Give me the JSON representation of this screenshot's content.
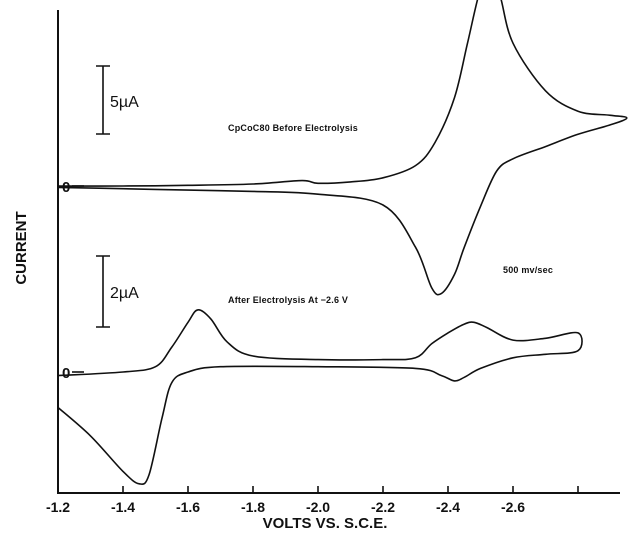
{
  "chart_data": {
    "type": "line",
    "title": "",
    "xlabel": "VOLTS  VS. S.C.E.",
    "ylabel": "CURRENT",
    "xlim": [
      -1.2,
      -3.0
    ],
    "x_ticks": [
      -1.2,
      -1.4,
      -1.6,
      -1.8,
      -2.0,
      -2.2,
      -2.4,
      -2.6,
      -2.8
    ],
    "x_tick_labels": [
      "-1.2",
      "-1.4",
      "-1.6",
      "-1.8",
      "-2.0",
      "-2.2",
      "-2.4",
      "-2.6",
      ""
    ],
    "annotations": {
      "top_panel": "CpCoC80 Before Electrolysis",
      "bottom_panel": "After Electrolysis At  −2.6 V",
      "scan_rate": "500 mv/sec"
    },
    "scale_bars": [
      {
        "label": "5µA",
        "panel": "top",
        "value_uA": 5
      },
      {
        "label": "2µA",
        "panel": "bottom",
        "value_uA": 2
      }
    ],
    "zero_labels": [
      "0",
      "0"
    ],
    "series": [
      {
        "panel": "top",
        "units": "µA",
        "x": [
          -1.2,
          -1.4,
          -1.6,
          -1.8,
          -1.95,
          -2.0,
          -2.1,
          -2.2,
          -2.3,
          -2.36,
          -2.42,
          -2.46,
          -2.5,
          -2.53,
          -2.56,
          -2.6,
          -2.7,
          -2.8,
          -2.9,
          -2.95,
          -2.9,
          -2.8,
          -2.7,
          -2.6,
          -2.55,
          -2.5,
          -2.45,
          -2.42,
          -2.38,
          -2.35,
          -2.3,
          -2.2,
          -2.0,
          -1.8,
          -1.6,
          -1.4,
          -1.2
        ],
        "y": [
          0.0,
          0.0,
          0.05,
          0.15,
          0.4,
          0.2,
          0.3,
          0.6,
          1.5,
          3.2,
          6.5,
          10.5,
          14.5,
          15.5,
          14.0,
          10.5,
          7.0,
          5.5,
          5.2,
          5.0,
          4.5,
          3.8,
          2.9,
          2.0,
          1.1,
          -1.5,
          -4.5,
          -6.5,
          -7.9,
          -7.5,
          -4.5,
          -1.4,
          -0.6,
          -0.4,
          -0.3,
          -0.2,
          -0.1
        ]
      },
      {
        "panel": "bottom",
        "units": "µA",
        "x": [
          -1.2,
          -1.4,
          -1.5,
          -1.55,
          -1.6,
          -1.63,
          -1.67,
          -1.72,
          -1.8,
          -2.0,
          -2.2,
          -2.3,
          -2.35,
          -2.4,
          -2.45,
          -2.48,
          -2.52,
          -2.6,
          -2.7,
          -2.8,
          -2.8,
          -2.7,
          -2.6,
          -2.5,
          -2.45,
          -2.42,
          -2.38,
          -2.3,
          -2.0,
          -1.7,
          -1.6,
          -1.55,
          -1.52,
          -1.48,
          -1.45,
          -1.4,
          -1.3,
          -1.2
        ],
        "y": [
          -0.1,
          0.0,
          0.15,
          0.7,
          1.4,
          1.75,
          1.5,
          0.85,
          0.45,
          0.35,
          0.35,
          0.4,
          0.8,
          1.1,
          1.35,
          1.4,
          1.25,
          0.9,
          0.95,
          1.1,
          0.6,
          0.5,
          0.4,
          0.1,
          -0.15,
          -0.25,
          -0.1,
          0.1,
          0.15,
          0.15,
          0.0,
          -0.3,
          -1.3,
          -2.9,
          -3.15,
          -2.8,
          -1.8,
          -1.0
        ]
      }
    ]
  }
}
